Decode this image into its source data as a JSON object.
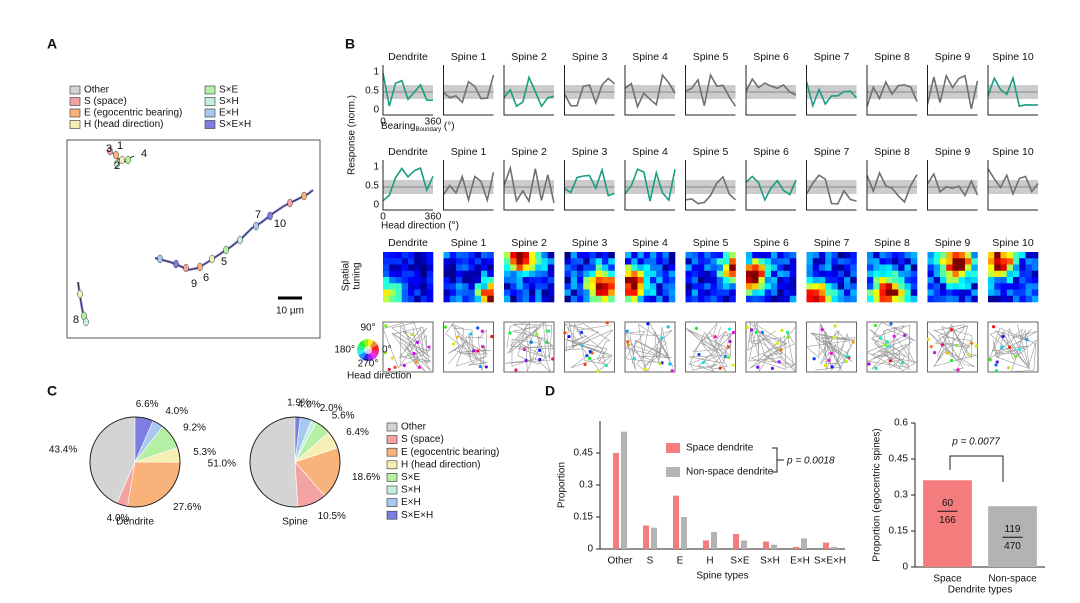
{
  "panel_labels": [
    "A",
    "B",
    "C",
    "D"
  ],
  "panel_a": {
    "legend": [
      "Other",
      "S (space)",
      "E (egocentric bearing)",
      "H (head direction)",
      "S×E",
      "S×H",
      "E×H",
      "S×E×H"
    ],
    "colors": [
      "#d4d4d4",
      "#f4a3a3",
      "#f9b27a",
      "#f5efb4",
      "#b4efa4",
      "#c4f0dc",
      "#a8c8f0",
      "#7d7ee2"
    ],
    "spine_labels": [
      "1",
      "2",
      "3",
      "4",
      "5",
      "6",
      "7",
      "8",
      "9",
      "10"
    ],
    "scale_bar": "10 µm"
  },
  "panel_b": {
    "rows": [
      {
        "titles": [
          "Dendrite",
          "Spine 1",
          "Spine 2",
          "Spine 3",
          "Spine 4",
          "Spine 5",
          "Spine 6",
          "Spine 7",
          "Spine 8",
          "Spine 9",
          "Spine 10"
        ],
        "red": [
          0,
          2,
          7,
          10
        ]
      },
      {
        "titles": [
          "Dendrite",
          "Spine 1",
          "Spine 2",
          "Spine 3",
          "Spine 4",
          "Spine 5",
          "Spine 6",
          "Spine 7",
          "Spine 8",
          "Spine 9",
          "Spine 10"
        ],
        "red": [
          0,
          3,
          4,
          6
        ]
      },
      {
        "titles": [
          "Dendrite",
          "Spine 1",
          "Spine 2",
          "Spine 3",
          "Spine 4",
          "Spine 5",
          "Spine 6",
          "Spine 7",
          "Spine 8",
          "Spine 9",
          "Spine 10"
        ],
        "red": [
          0,
          4,
          6,
          8,
          9,
          10
        ]
      }
    ],
    "y_label": "Response (norm.)",
    "yticks": [
      "0",
      "0.5",
      "1"
    ],
    "xticks": [
      "0",
      "360"
    ],
    "row1_xlabel": "Bearing",
    "row1_xlabel_sub": "Boundary",
    "row1_xlabel_unit": "(°)",
    "row2_xlabel": "Head direction (°)",
    "row3_label": [
      "Spatial",
      "tuning"
    ],
    "wheel_labels": [
      "90°",
      "180°",
      "0°",
      "270°"
    ],
    "wheel_title": "Head direction"
  },
  "chart_data": [
    {
      "type": "pie",
      "title": "Dendrite",
      "categories": [
        "Other",
        "S (space)",
        "E (egocentric bearing)",
        "H (head direction)",
        "S×E",
        "S×H",
        "E×H",
        "S×E×H"
      ],
      "values": [
        43.4,
        4.0,
        27.6,
        5.3,
        9.2,
        0,
        4.0,
        6.6
      ],
      "value_labels": [
        "43.4%",
        "4.0%",
        "27.6%",
        "5.3%",
        "9.2%",
        null,
        "4.0%",
        "6.6%"
      ],
      "colors": [
        "#d4d4d4",
        "#f4a3a3",
        "#f9b27a",
        "#f5efb4",
        "#b4efa4",
        "#c4f0dc",
        "#a8c8f0",
        "#7d7ee2"
      ]
    },
    {
      "type": "pie",
      "title": "Spine",
      "categories": [
        "Other",
        "S (space)",
        "E (egocentric bearing)",
        "H (head direction)",
        "S×E",
        "S×H",
        "E×H",
        "S×E×H"
      ],
      "values": [
        51.0,
        10.5,
        18.6,
        6.4,
        5.6,
        2.0,
        4.0,
        1.9
      ],
      "value_labels": [
        "51.0%",
        "10.5%",
        "18.6%",
        "6.4%",
        "5.6%",
        "2.0%",
        "4.0%",
        "1.9%"
      ],
      "colors": [
        "#d4d4d4",
        "#f4a3a3",
        "#f9b27a",
        "#f5efb4",
        "#b4efa4",
        "#c4f0dc",
        "#a8c8f0",
        "#7d7ee2"
      ],
      "legend": true
    },
    {
      "type": "bar",
      "x_label": "Spine types",
      "y_label": "Proportion",
      "categories": [
        "Other",
        "S",
        "E",
        "H",
        "S×E",
        "S×H",
        "E×H",
        "S×E×H"
      ],
      "series": [
        {
          "name": "Space dendrite",
          "color": "#f47c7c",
          "values": [
            0.45,
            0.11,
            0.25,
            0.04,
            0.07,
            0.035,
            0.01,
            0.03
          ]
        },
        {
          "name": "Non-space dendrite",
          "color": "#b3b3b3",
          "values": [
            0.55,
            0.1,
            0.15,
            0.08,
            0.04,
            0.02,
            0.05,
            0.01
          ]
        }
      ],
      "ylim": [
        0,
        0.6
      ],
      "yticks": [
        0,
        0.15,
        0.3,
        0.45
      ],
      "annotation": "p = 0.0018"
    },
    {
      "type": "bar",
      "x_label": "Dendrite types",
      "y_label": "Proportion (egocentric spines)",
      "categories": [
        "Space",
        "Non-space"
      ],
      "values": [
        0.3614,
        0.2532
      ],
      "value_labels": [
        [
          "60",
          "166"
        ],
        [
          "119",
          "470"
        ]
      ],
      "colors": [
        "#f47c7c",
        "#b3b3b3"
      ],
      "ylim": [
        0,
        0.6
      ],
      "yticks": [
        0,
        0.15,
        0.3,
        0.45,
        0.6
      ],
      "annotation": "p = 0.0077"
    }
  ]
}
